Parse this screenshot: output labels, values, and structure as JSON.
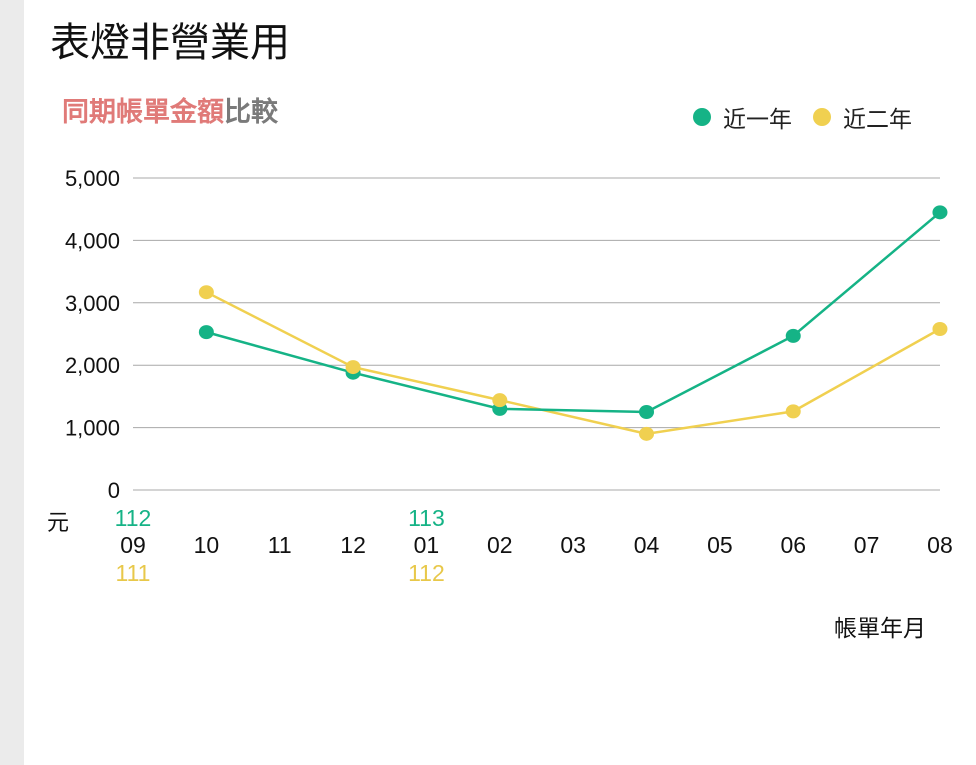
{
  "page": {
    "title": "表燈非營業用"
  },
  "chart_data": {
    "type": "line",
    "title_highlight": "同期帳單金額",
    "title_rest": "比較",
    "categories": [
      "09",
      "10",
      "11",
      "12",
      "01",
      "02",
      "03",
      "04",
      "05",
      "06",
      "07",
      "08"
    ],
    "year_markers": [
      {
        "category": "09",
        "top": "112",
        "bottom": "111"
      },
      {
        "category": "01",
        "top": "113",
        "bottom": "112"
      }
    ],
    "series": [
      {
        "name": "近一年",
        "color": "#15b386",
        "values": [
          null,
          2530,
          null,
          1880,
          null,
          1300,
          null,
          1250,
          null,
          2470,
          null,
          4450
        ]
      },
      {
        "name": "近二年",
        "color": "#f0d050",
        "values": [
          null,
          3170,
          null,
          1970,
          null,
          1440,
          null,
          900,
          null,
          1260,
          null,
          2580
        ]
      }
    ],
    "yticks": [
      "0",
      "1,000",
      "2,000",
      "3,000",
      "4,000",
      "5,000"
    ],
    "ylim": [
      0,
      5000
    ],
    "ylabel": "元",
    "xlabel": "帳單年月",
    "grid": true,
    "legend_position": "top-right"
  }
}
